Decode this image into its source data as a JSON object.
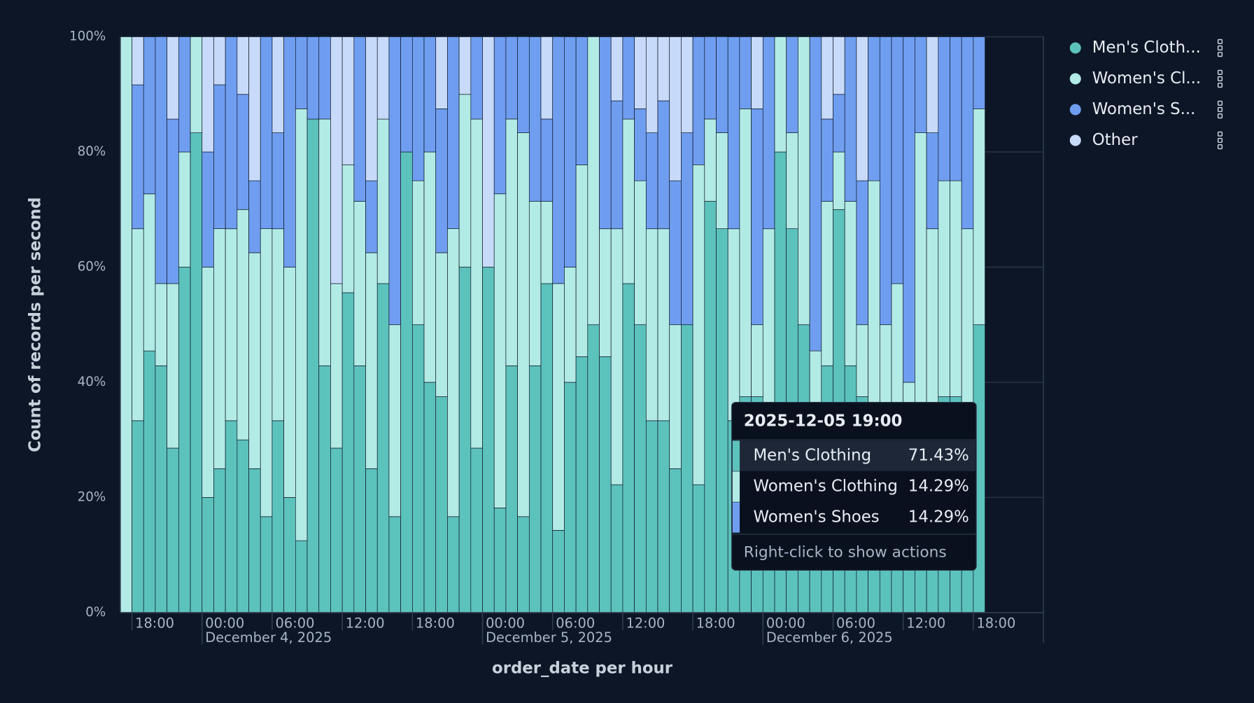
{
  "chart_data": {
    "type": "stacked-percent-bar",
    "y_label": "Count of records per second",
    "x_label": "order_date per hour",
    "ylim": [
      0,
      100
    ],
    "yticks": [
      {
        "value": 0,
        "label": "0%"
      },
      {
        "value": 20,
        "label": "20%"
      },
      {
        "value": 40,
        "label": "40%"
      },
      {
        "value": 60,
        "label": "60%"
      },
      {
        "value": 80,
        "label": "80%"
      },
      {
        "value": 100,
        "label": "100%"
      }
    ],
    "grid": true,
    "categories": [
      "2025-12-03 17:00",
      "2025-12-03 18:00",
      "2025-12-03 19:00",
      "2025-12-03 20:00",
      "2025-12-03 21:00",
      "2025-12-03 22:00",
      "2025-12-03 23:00",
      "2025-12-04 00:00",
      "2025-12-04 01:00",
      "2025-12-04 02:00",
      "2025-12-04 03:00",
      "2025-12-04 04:00",
      "2025-12-04 05:00",
      "2025-12-04 06:00",
      "2025-12-04 07:00",
      "2025-12-04 08:00",
      "2025-12-04 09:00",
      "2025-12-04 10:00",
      "2025-12-04 11:00",
      "2025-12-04 12:00",
      "2025-12-04 13:00",
      "2025-12-04 14:00",
      "2025-12-04 15:00",
      "2025-12-04 16:00",
      "2025-12-04 17:00",
      "2025-12-04 18:00",
      "2025-12-04 19:00",
      "2025-12-04 20:00",
      "2025-12-04 21:00",
      "2025-12-04 22:00",
      "2025-12-04 23:00",
      "2025-12-05 00:00",
      "2025-12-05 01:00",
      "2025-12-05 02:00",
      "2025-12-05 03:00",
      "2025-12-05 04:00",
      "2025-12-05 05:00",
      "2025-12-05 06:00",
      "2025-12-05 07:00",
      "2025-12-05 08:00",
      "2025-12-05 09:00",
      "2025-12-05 10:00",
      "2025-12-05 11:00",
      "2025-12-05 12:00",
      "2025-12-05 13:00",
      "2025-12-05 14:00",
      "2025-12-05 15:00",
      "2025-12-05 16:00",
      "2025-12-05 17:00",
      "2025-12-05 18:00",
      "2025-12-05 19:00",
      "2025-12-05 20:00",
      "2025-12-05 21:00",
      "2025-12-05 22:00",
      "2025-12-05 23:00",
      "2025-12-06 00:00",
      "2025-12-06 01:00",
      "2025-12-06 02:00",
      "2025-12-06 03:00",
      "2025-12-06 04:00",
      "2025-12-06 05:00",
      "2025-12-06 06:00",
      "2025-12-06 07:00",
      "2025-12-06 08:00",
      "2025-12-06 09:00",
      "2025-12-06 10:00",
      "2025-12-06 11:00",
      "2025-12-06 12:00",
      "2025-12-06 13:00",
      "2025-12-06 14:00",
      "2025-12-06 15:00",
      "2025-12-06 16:00",
      "2025-12-06 17:00",
      "2025-12-06 18:00"
    ],
    "xticks": [
      {
        "value": "2025-12-03 18:00",
        "label": "18:00"
      },
      {
        "value": "2025-12-04 00:00",
        "label": "00:00"
      },
      {
        "value": "2025-12-04 06:00",
        "label": "06:00"
      },
      {
        "value": "2025-12-04 12:00",
        "label": "12:00"
      },
      {
        "value": "2025-12-04 18:00",
        "label": "18:00"
      },
      {
        "value": "2025-12-05 00:00",
        "label": "00:00"
      },
      {
        "value": "2025-12-05 06:00",
        "label": "06:00"
      },
      {
        "value": "2025-12-05 12:00",
        "label": "12:00"
      },
      {
        "value": "2025-12-05 18:00",
        "label": "18:00"
      },
      {
        "value": "2025-12-06 00:00",
        "label": "00:00"
      },
      {
        "value": "2025-12-06 06:00",
        "label": "06:00"
      },
      {
        "value": "2025-12-06 12:00",
        "label": "12:00"
      },
      {
        "value": "2025-12-06 18:00",
        "label": "18:00"
      }
    ],
    "x_date_labels": [
      {
        "value": "2025-12-04 00:00",
        "label": "December 4, 2025"
      },
      {
        "value": "2025-12-05 00:00",
        "label": "December 5, 2025"
      },
      {
        "value": "2025-12-06 00:00",
        "label": "December 6, 2025"
      }
    ],
    "series": [
      {
        "name": "Men's Clothing",
        "legend_label": "Men's Cloth...",
        "color": "#5cc2bc",
        "values": [
          0,
          33.33,
          45.45,
          42.86,
          28.57,
          60,
          83.33,
          20,
          25,
          33.33,
          30,
          25,
          16.67,
          33.33,
          20,
          12.5,
          85.71,
          42.86,
          28.57,
          55.56,
          42.86,
          25,
          57.14,
          16.67,
          80,
          50,
          40,
          37.5,
          16.67,
          60,
          28.57,
          60,
          18.18,
          42.86,
          16.67,
          42.86,
          57.14,
          14.29,
          40,
          44.44,
          50,
          44.44,
          22.22,
          57.14,
          50,
          33.33,
          33.33,
          25,
          50,
          22.22,
          71.43,
          66.67,
          33.33,
          37.5,
          37.5,
          33.33,
          80,
          66.67,
          50,
          27.27,
          42.86,
          70,
          42.86,
          37.5,
          25,
          25,
          28.57,
          20,
          33.33,
          33.33,
          37.5,
          37.5,
          33.33,
          50
        ]
      },
      {
        "name": "Women's Clothing",
        "legend_label": "Women's Cl...",
        "color": "#b2ebe5",
        "values": [
          100,
          33.33,
          27.27,
          14.29,
          28.57,
          20,
          16.67,
          40,
          41.67,
          33.33,
          40,
          37.5,
          50,
          33.33,
          40,
          75,
          0,
          42.86,
          28.57,
          22.22,
          28.57,
          37.5,
          28.57,
          33.33,
          0,
          25,
          40,
          25,
          50,
          30,
          57.14,
          0,
          54.55,
          42.86,
          66.67,
          28.57,
          14.29,
          42.86,
          20,
          33.33,
          50,
          22.22,
          44.44,
          28.57,
          25,
          33.33,
          33.33,
          25,
          0,
          55.56,
          14.29,
          16.67,
          33.33,
          50,
          12.5,
          33.33,
          20,
          16.67,
          50,
          18.18,
          28.57,
          10,
          28.57,
          12.5,
          50,
          25,
          28.57,
          20,
          50,
          33.33,
          37.5,
          37.5,
          33.33,
          37.5
        ]
      },
      {
        "name": "Women's Shoes",
        "legend_label": "Women's S...",
        "color": "#6f9ef0",
        "values": [
          0,
          25,
          27.27,
          42.86,
          28.57,
          20,
          0,
          20,
          25,
          33.33,
          20,
          12.5,
          33.33,
          16.67,
          40,
          12.5,
          14.29,
          14.29,
          0,
          0,
          28.57,
          12.5,
          0,
          50,
          20,
          25,
          20,
          25,
          33.33,
          0,
          14.29,
          0,
          27.27,
          14.29,
          16.67,
          28.57,
          14.29,
          42.86,
          40,
          22.22,
          0,
          33.33,
          22.22,
          14.29,
          12.5,
          16.67,
          22.22,
          25,
          33.33,
          22.22,
          14.29,
          16.67,
          33.33,
          12.5,
          37.5,
          33.33,
          0,
          16.67,
          0,
          54.55,
          14.29,
          10,
          28.57,
          25,
          25,
          50,
          42.86,
          60,
          16.67,
          16.67,
          25,
          25,
          33.33,
          12.5
        ]
      },
      {
        "name": "Other",
        "legend_label": "Other",
        "color": "#c8dafa",
        "values": [
          0,
          8.33,
          0,
          0,
          14.29,
          0,
          0,
          20,
          8.33,
          0,
          10,
          25,
          0,
          16.67,
          0,
          0,
          0,
          0,
          42.86,
          22.22,
          0,
          25,
          14.29,
          0,
          0,
          0,
          0,
          12.5,
          0,
          10,
          0,
          40,
          0,
          0,
          0,
          0,
          14.29,
          0,
          0,
          0,
          0,
          0,
          11.11,
          0,
          12.5,
          16.67,
          11.11,
          25,
          16.67,
          0,
          0,
          0,
          0,
          0,
          12.5,
          0,
          0,
          0,
          0,
          0,
          14.29,
          10,
          0,
          25,
          0,
          0,
          0,
          0,
          0,
          16.67,
          0,
          0,
          0,
          0
        ]
      }
    ],
    "tooltip": {
      "title": "2025-12-05 19:00",
      "value_labels": [
        "71.43%",
        "14.29%",
        "14.29%"
      ],
      "hint": "Right-click to show actions"
    }
  }
}
